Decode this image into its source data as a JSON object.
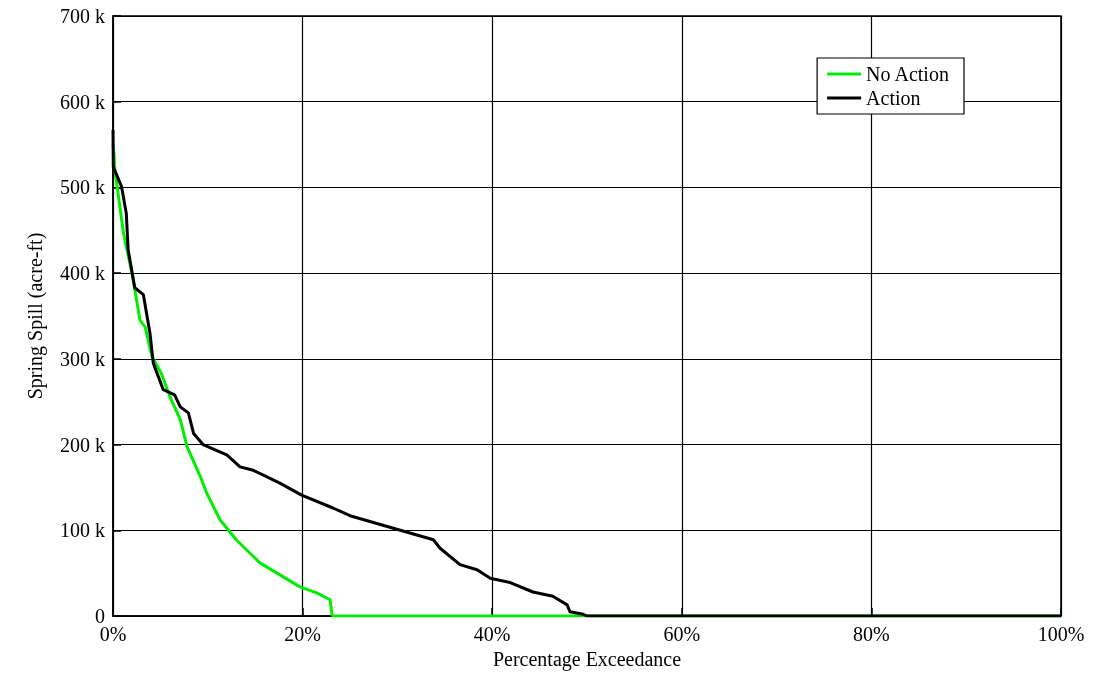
{
  "chart_data": {
    "type": "line",
    "xlabel": "Percentage Exceedance",
    "ylabel": "Spring Spill (acre-ft)",
    "xlim": [
      0,
      100
    ],
    "ylim": [
      0,
      700000
    ],
    "xticks": [
      {
        "value": 0,
        "label": "0%"
      },
      {
        "value": 20,
        "label": "20%"
      },
      {
        "value": 40,
        "label": "40%"
      },
      {
        "value": 60,
        "label": "60%"
      },
      {
        "value": 80,
        "label": "80%"
      },
      {
        "value": 100,
        "label": "100%"
      }
    ],
    "yticks": [
      0,
      {
        "value": 100000,
        "label": "100 k"
      },
      {
        "value": 200000,
        "label": "200 k"
      },
      {
        "value": 300000,
        "label": "300 k"
      },
      {
        "value": 400000,
        "label": "400 k"
      },
      {
        "value": 500000,
        "label": "500 k"
      },
      {
        "value": 600000,
        "label": "600 k"
      },
      {
        "value": 700000,
        "label": "700 k"
      }
    ],
    "grid": true,
    "legend": "top right",
    "marker": "none",
    "line_style": "solid",
    "series": [
      {
        "name": "No Action",
        "color": "#00ee00",
        "x": [
          0,
          0.1,
          0.2,
          1.1,
          2.0,
          2.85,
          3.4,
          4.1,
          5.1,
          6.0,
          7.1,
          7.8,
          9.2,
          9.9,
          11.3,
          13.0,
          15.5,
          17.3,
          19.7,
          21.5,
          22.9,
          23.1,
          23.2,
          100
        ],
        "values": [
          550000,
          540000,
          520000,
          447000,
          400000,
          345000,
          337000,
          303000,
          283000,
          256000,
          229000,
          198000,
          163000,
          143000,
          112000,
          89000,
          62000,
          50000,
          34000,
          27000,
          19000,
          1000,
          0,
          0
        ]
      },
      {
        "name": "Action",
        "color": "#000000",
        "x": [
          0,
          0.03,
          0.9,
          1.4,
          1.6,
          2.3,
          3.2,
          3.9,
          4.25,
          5.3,
          6.5,
          7.1,
          7.95,
          8.5,
          9.5,
          12.0,
          13.4,
          14.8,
          17.6,
          19.9,
          23.2,
          25.0,
          30.3,
          33.8,
          34.5,
          36.6,
          38.4,
          39.8,
          41.9,
          44.3,
          46.4,
          47.9,
          48.2,
          49.6,
          50,
          100
        ],
        "values": [
          567000,
          524000,
          501000,
          470000,
          427000,
          383000,
          375000,
          330000,
          295000,
          264000,
          258000,
          244000,
          237000,
          213000,
          200000,
          188000,
          174000,
          170000,
          155000,
          141000,
          126000,
          117000,
          100000,
          89000,
          79000,
          60000,
          54000,
          44000,
          39000,
          28000,
          23000,
          13000,
          5000,
          2000,
          0,
          0
        ]
      }
    ]
  }
}
